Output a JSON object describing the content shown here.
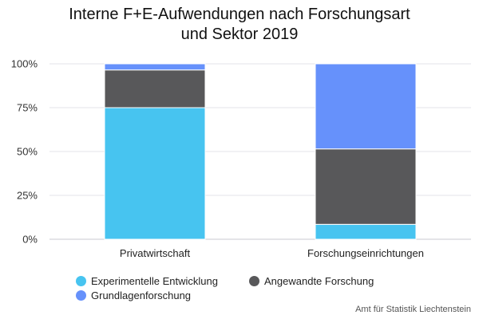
{
  "chart_data": {
    "type": "bar",
    "stacked": true,
    "title_lines": [
      "Interne F+E-Aufwendungen nach Forschungsart",
      "und Sektor 2019"
    ],
    "categories": [
      "Privatwirtschaft",
      "Forschungseinrichtungen"
    ],
    "series": [
      {
        "name": "Experimentelle Entwicklung",
        "color": "#47c4f0",
        "values": [
          75,
          8.5
        ]
      },
      {
        "name": "Angewandte Forschung",
        "color": "#58585a",
        "values": [
          21.5,
          43
        ]
      },
      {
        "name": "Grundlagenforschung",
        "color": "#6691fb",
        "values": [
          3.5,
          48.5
        ]
      }
    ],
    "yticks": [
      "0%",
      "25%",
      "50%",
      "75%",
      "100%"
    ],
    "ylim": [
      0,
      100
    ],
    "grid": true,
    "legend_position": "bottom"
  },
  "source": "Amt für Statistik Liechtenstein"
}
